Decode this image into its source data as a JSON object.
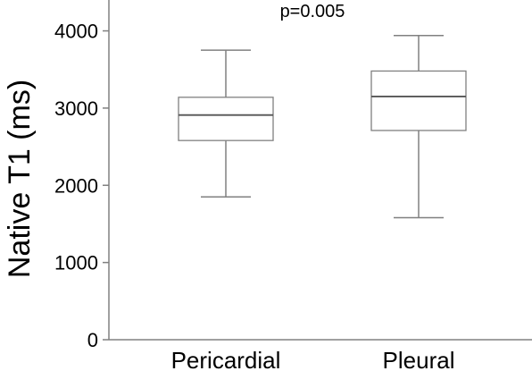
{
  "chart_data": {
    "type": "box",
    "ylabel": "Native T1 (ms)",
    "xlabel": "",
    "ylim": [
      0,
      4400
    ],
    "yticks": [
      0,
      1000,
      2000,
      3000,
      4000
    ],
    "ytick_labels": [
      "0",
      "1000",
      "2000",
      "3000",
      "4000"
    ],
    "annotation": "p=0.005",
    "grid": false,
    "categories": [
      "Pericardial",
      "Pleural"
    ],
    "boxes": [
      {
        "category": "Pericardial",
        "whisker_low": 1850,
        "q1": 2580,
        "median": 2910,
        "q3": 3140,
        "whisker_high": 3750
      },
      {
        "category": "Pleural",
        "whisker_low": 1580,
        "q1": 2710,
        "median": 3150,
        "q3": 3480,
        "whisker_high": 3940
      }
    ]
  }
}
